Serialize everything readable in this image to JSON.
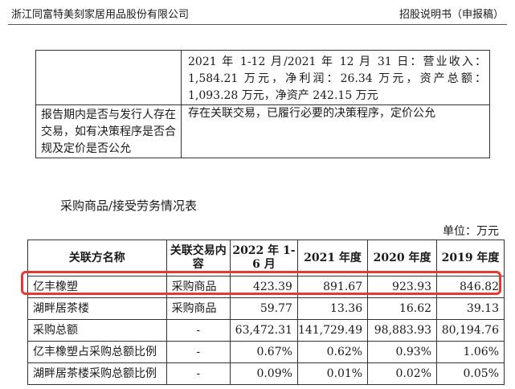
{
  "header": {
    "company": "浙江同富特美刻家居用品股份有限公司",
    "doc_type": "招股说明书（申报稿）"
  },
  "top_table": {
    "row1_value": "2021 年 1-12 月/2021 年 12 月 31 日：营业收入：1,584.21 万元，净利润：26.34 万元，资产总额：1,093.28 万元，净资产 242.15 万元",
    "row2_label": "报告期内是否与发行人存在交易，如有决策程序是否合规及定价是否公允",
    "row2_value": "存在关联交易，已履行必要的决策程序，定价公允"
  },
  "caption": "采购商品/接受劳务情况表",
  "unit": "单位：万元",
  "data_table": {
    "headers": {
      "name": "关联方名称",
      "type": "关联交易内容",
      "c2022": "2022 年 1-6 月",
      "c2021": "2021 年度",
      "c2020": "2020 年度",
      "c2019": "2019 年度"
    },
    "rows": [
      {
        "name": "亿丰橡塑",
        "type": "采购商品",
        "v2022": "423.39",
        "v2021": "891.67",
        "v2020": "923.93",
        "v2019": "846.82"
      },
      {
        "name": "湖畔居茶楼",
        "type": "采购商品",
        "v2022": "59.77",
        "v2021": "13.36",
        "v2020": "16.62",
        "v2019": "39.13"
      },
      {
        "name": "采购总额",
        "type": "-",
        "v2022": "63,472.31",
        "v2021": "141,729.49",
        "v2020": "98,883.93",
        "v2019": "80,194.76"
      },
      {
        "name": "亿丰橡塑占采购总额比例",
        "type": "-",
        "v2022": "0.67%",
        "v2021": "0.62%",
        "v2020": "0.93%",
        "v2019": "1.06%"
      },
      {
        "name": "湖畔居茶楼采购总额比例",
        "type": "-",
        "v2022": "0.09%",
        "v2021": "0.01%",
        "v2020": "0.02%",
        "v2019": "0.05%"
      }
    ]
  },
  "colors": {
    "highlight": "#e53935"
  }
}
